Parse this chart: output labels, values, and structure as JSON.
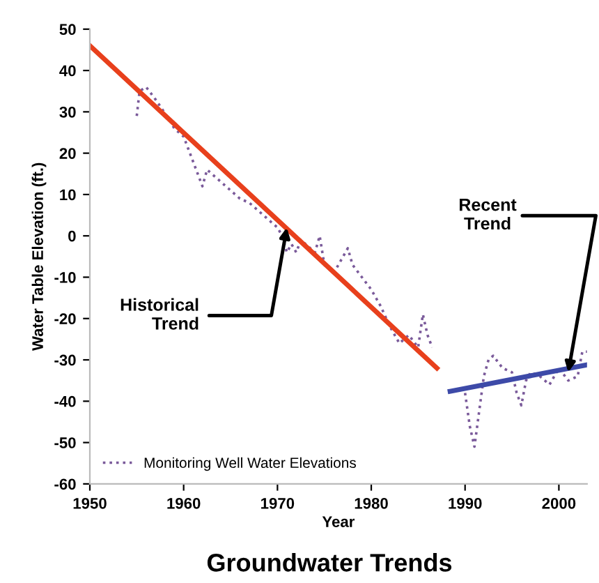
{
  "chart_data": {
    "type": "line",
    "title": "Groundwater Trends",
    "xlabel": "Year",
    "ylabel": "Water Table Elevation (ft.)",
    "xlim": [
      1950,
      2003
    ],
    "xticks": [
      1950,
      1960,
      1970,
      1980,
      1990,
      2000
    ],
    "ylim": [
      -60,
      50
    ],
    "yticks": [
      -60,
      -50,
      -40,
      -30,
      -20,
      -10,
      0,
      10,
      20,
      30,
      40,
      50
    ],
    "grid": false,
    "legend": "bottom left",
    "marker": "none",
    "series": [
      {
        "name": "Monitoring Well Water Elevations",
        "color": "#7a5a9a",
        "line_style": "dotted",
        "x": [
          1955,
          1955.3,
          1956,
          1957,
          1958.5,
          1959,
          1960,
          1961,
          1962,
          1962.5,
          1963,
          1964,
          1965,
          1966,
          1967,
          1968,
          1969,
          1970,
          1970.5,
          1971,
          1971.5,
          1972,
          1972.5,
          1973,
          1974,
          1974.5,
          1975,
          1976,
          1977,
          1977.5,
          1978,
          1979,
          1980,
          1981,
          1982,
          1983,
          1984,
          1985,
          1985.5,
          1986,
          1986.5,
          1988,
          1990,
          1990.5,
          1991,
          1992,
          1992.5,
          1993,
          1994,
          1995,
          1995.5,
          1996,
          1996.5,
          1997,
          1998,
          1999,
          2000,
          2001,
          2002,
          2002.5,
          2003
        ],
        "values": [
          29,
          35,
          36,
          33,
          28,
          26,
          24,
          18,
          12,
          16,
          15,
          13,
          11,
          9,
          8,
          6,
          4,
          2,
          0,
          -4,
          -2,
          -4,
          -1,
          -2,
          -4,
          0,
          -7,
          -9,
          -5,
          -3,
          -7,
          -10,
          -13,
          -17,
          -22,
          -26,
          -24,
          -27,
          -19,
          -24,
          -27,
          null,
          -38,
          -46,
          -51,
          -34,
          -30,
          -29,
          -32,
          -33,
          -38,
          -41,
          -35,
          -33,
          -34,
          -36,
          -32,
          -35,
          -34,
          -28,
          -28
        ]
      },
      {
        "color": "#e8401c",
        "line_style": "solid",
        "x": [
          1950,
          1987
        ],
        "values": [
          46,
          -32
        ]
      },
      {
        "color": "#3d4aa8",
        "line_style": "solid",
        "x": [
          1988.4,
          2003
        ],
        "values": [
          -37.6,
          -31.2
        ]
      }
    ],
    "annotations": [
      {
        "text": "Historical\nTrend",
        "x": 1971,
        "y": 2
      },
      {
        "text": "Recent\nTrend",
        "x": 2001,
        "y": -33
      }
    ]
  }
}
